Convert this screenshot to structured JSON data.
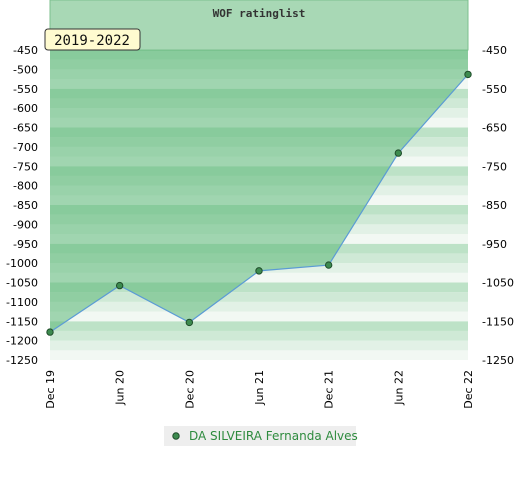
{
  "chart_data": {
    "type": "area",
    "title": "WOF ratinglist",
    "range_label": "2019-2022",
    "x": [
      "Dec 19",
      "Jun 20",
      "Dec 20",
      "Jun 21",
      "Dec 21",
      "Jun 22",
      "Dec 22"
    ],
    "series": [
      {
        "name": "DA SILVEIRA Fernanda Alves",
        "values": [
          -1178,
          -1058,
          -1153,
          -1020,
          -1005,
          -716,
          -513
        ]
      }
    ],
    "y_left_ticks": [
      -450,
      -500,
      -550,
      -600,
      -650,
      -700,
      -750,
      -800,
      -850,
      -900,
      -950,
      -1000,
      -1050,
      -1100,
      -1150,
      -1200,
      -1250
    ],
    "y_right_ticks": [
      -450,
      -550,
      -650,
      -750,
      -850,
      -950,
      -1050,
      -1150,
      -1250
    ],
    "ylim": [
      -1250,
      -450
    ],
    "legend_position": "bottom-center",
    "colors": {
      "area_fill": "#5cb878",
      "line": "#5b9bd5",
      "marker": "#3d8b4f",
      "header_fill": "#a8d8b5",
      "badge_fill": "#fffbd0",
      "legend_bg": "#eeeeee",
      "legend_text": "#2e8b3e"
    }
  }
}
